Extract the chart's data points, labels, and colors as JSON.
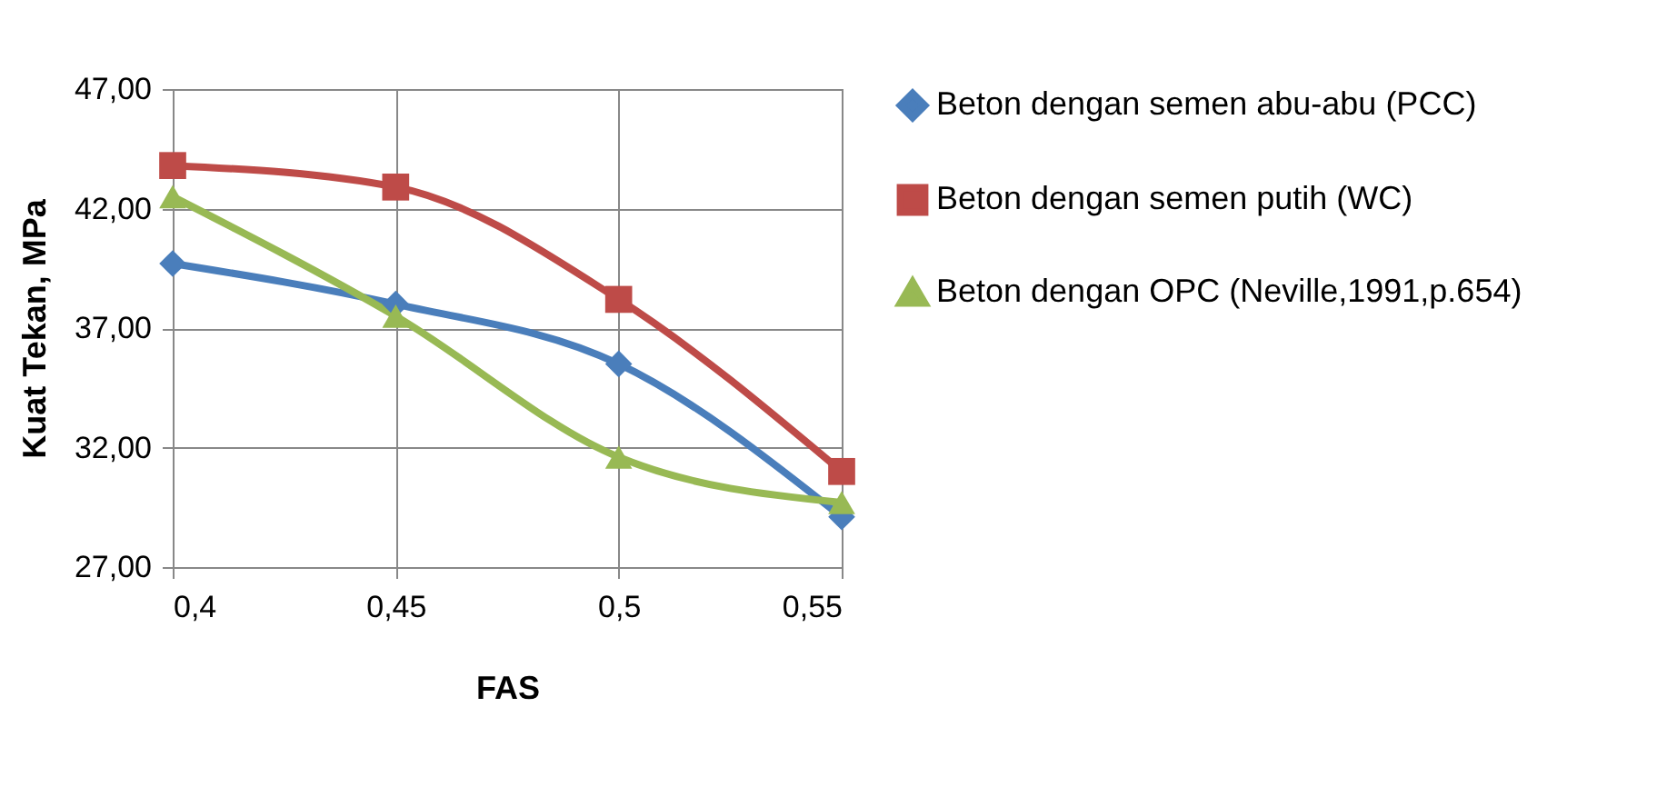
{
  "chart_data": {
    "type": "line",
    "xlabel": "FAS",
    "ylabel": "Kuat Tekan, MPa",
    "x": [
      0.4,
      0.45,
      0.5,
      0.55
    ],
    "xlim": [
      0.4,
      0.55
    ],
    "xticks": [
      {
        "value": 0.4,
        "label": "0,4"
      },
      {
        "value": 0.45,
        "label": "0,45"
      },
      {
        "value": 0.5,
        "label": "0,5"
      },
      {
        "value": 0.55,
        "label": "0,55"
      }
    ],
    "ylim": [
      27,
      47
    ],
    "yticks": [
      {
        "value": 27,
        "label": "27,00"
      },
      {
        "value": 32,
        "label": "32,00"
      },
      {
        "value": 37,
        "label": "37,00"
      },
      {
        "value": 42,
        "label": "42,00"
      },
      {
        "value": 47,
        "label": "47,00"
      }
    ],
    "grid": true,
    "legend": "right",
    "line_style": "solid",
    "series": [
      {
        "name": "Beton dengan semen abu-abu (PCC)",
        "color": "#4a7ebb",
        "marker": "diamond",
        "values": [
          39.7,
          38.0,
          35.5,
          29.1
        ]
      },
      {
        "name": "Beton dengan semen putih (WC)",
        "color": "#be4b48",
        "marker": "square",
        "values": [
          43.8,
          42.9,
          38.2,
          31.0
        ]
      },
      {
        "name": "Beton dengan OPC (Neville,1991,p.654)",
        "color": "#98b954",
        "marker": "triangle",
        "values": [
          42.5,
          37.5,
          31.6,
          29.7
        ]
      }
    ]
  }
}
